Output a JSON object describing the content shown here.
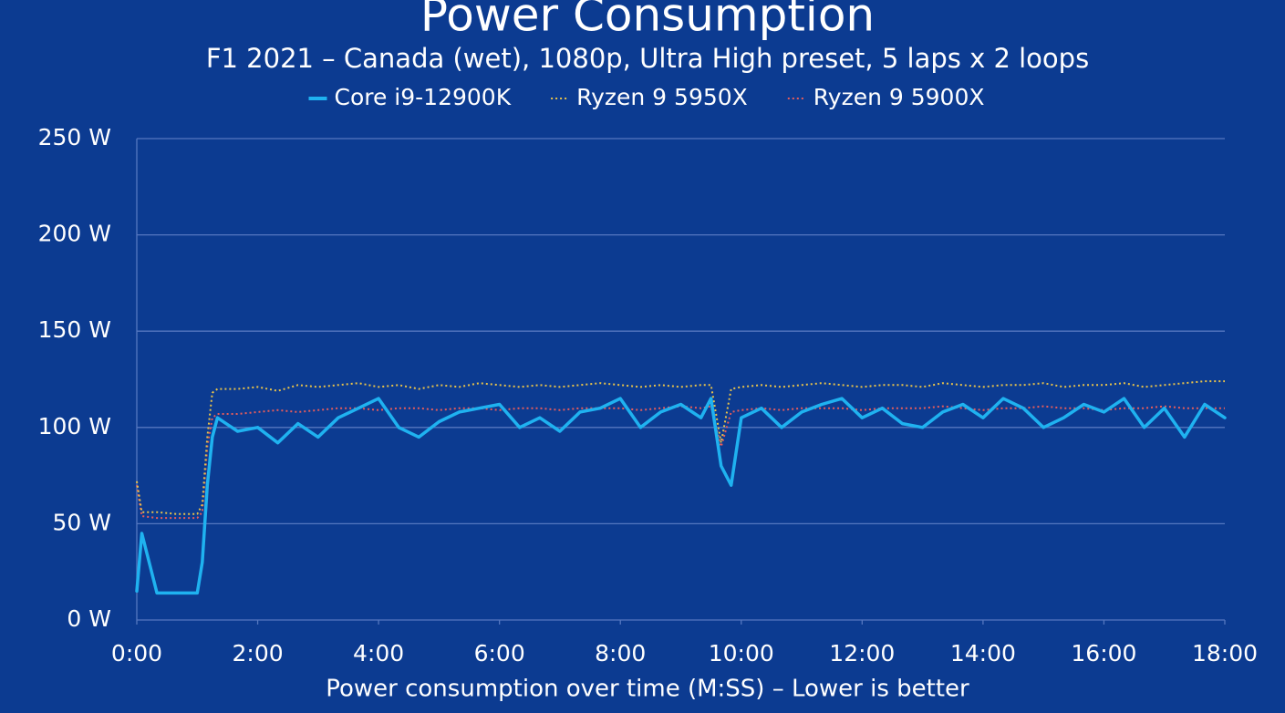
{
  "chart_data": {
    "type": "line",
    "title": "Power Consumption",
    "subtitle": "F1 2021 – Canada (wet), 1080p, Ultra High preset, 5 laps x 2 loops",
    "x_label": "Power consumption over time (M:SS) – Lower is better",
    "legend": "top",
    "grid": true,
    "x": [
      0,
      5,
      20,
      40,
      60,
      65,
      70,
      75,
      80,
      100,
      120,
      140,
      160,
      180,
      200,
      220,
      240,
      260,
      280,
      300,
      320,
      340,
      360,
      380,
      400,
      420,
      440,
      460,
      480,
      500,
      520,
      540,
      560,
      570,
      580,
      590,
      600,
      620,
      640,
      660,
      680,
      700,
      720,
      740,
      760,
      780,
      800,
      820,
      840,
      860,
      880,
      900,
      920,
      940,
      960,
      980,
      1000,
      1020,
      1040,
      1060,
      1080
    ],
    "series": [
      {
        "name": "Core i9-12900K",
        "color": "#1fb2f0",
        "style": "solid",
        "values": [
          15,
          45,
          14,
          14,
          14,
          30,
          70,
          95,
          105,
          98,
          100,
          92,
          102,
          95,
          105,
          110,
          115,
          100,
          95,
          103,
          108,
          110,
          112,
          100,
          105,
          98,
          108,
          110,
          115,
          100,
          108,
          112,
          105,
          115,
          80,
          70,
          105,
          110,
          100,
          108,
          112,
          115,
          105,
          110,
          102,
          100,
          108,
          112,
          105,
          115,
          110,
          100,
          105,
          112,
          108,
          115,
          100,
          110,
          95,
          112,
          105
        ]
      },
      {
        "name": "Ryzen 9 5950X",
        "color": "#e8c24a",
        "style": "dotted",
        "values": [
          72,
          56,
          56,
          55,
          55,
          60,
          95,
          118,
          120,
          120,
          121,
          119,
          122,
          121,
          122,
          123,
          121,
          122,
          120,
          122,
          121,
          123,
          122,
          121,
          122,
          121,
          122,
          123,
          122,
          121,
          122,
          121,
          122,
          122,
          92,
          120,
          121,
          122,
          121,
          122,
          123,
          122,
          121,
          122,
          122,
          121,
          123,
          122,
          121,
          122,
          122,
          123,
          121,
          122,
          122,
          123,
          121,
          122,
          123,
          124,
          124
        ]
      },
      {
        "name": "Ryzen 9 5900X",
        "color": "#e65c5c",
        "style": "dotted",
        "values": [
          70,
          54,
          53,
          53,
          53,
          56,
          90,
          105,
          107,
          107,
          108,
          109,
          108,
          109,
          110,
          110,
          109,
          110,
          110,
          109,
          110,
          110,
          109,
          110,
          110,
          109,
          110,
          110,
          110,
          109,
          110,
          111,
          110,
          111,
          90,
          108,
          109,
          110,
          109,
          110,
          110,
          110,
          109,
          110,
          110,
          110,
          111,
          110,
          109,
          110,
          110,
          111,
          110,
          110,
          109,
          110,
          110,
          111,
          110,
          110,
          110
        ]
      }
    ],
    "xlim": [
      0,
      1080
    ],
    "xticks": [
      {
        "value": 0,
        "label": "0:00"
      },
      {
        "value": 120,
        "label": "2:00"
      },
      {
        "value": 240,
        "label": "4:00"
      },
      {
        "value": 360,
        "label": "6:00"
      },
      {
        "value": 480,
        "label": "8:00"
      },
      {
        "value": 600,
        "label": "10:00"
      },
      {
        "value": 720,
        "label": "12:00"
      },
      {
        "value": 840,
        "label": "14:00"
      },
      {
        "value": 960,
        "label": "16:00"
      },
      {
        "value": 1080,
        "label": "18:00"
      }
    ],
    "ylim": [
      0,
      250
    ],
    "yticks": [
      {
        "value": 0,
        "label": "0 W"
      },
      {
        "value": 50,
        "label": "50 W"
      },
      {
        "value": 100,
        "label": "100 W"
      },
      {
        "value": 150,
        "label": "150 W"
      },
      {
        "value": 200,
        "label": "200 W"
      },
      {
        "value": 250,
        "label": "250 W"
      }
    ]
  }
}
